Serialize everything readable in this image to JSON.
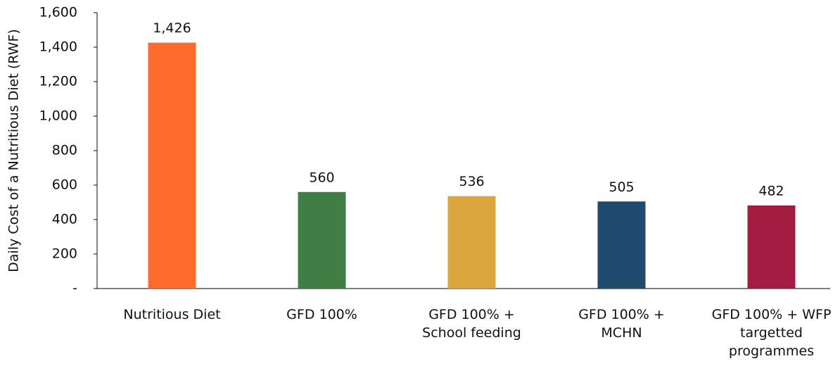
{
  "chart_data": {
    "type": "bar",
    "y_label": "Daily Cost of a Nutritious Diet (RWF)",
    "categories": [
      "Nutritious Diet",
      "GFD 100%",
      "GFD 100% + School feeding",
      "GFD 100% + MCHN",
      "GFD 100% + WFP targetted programmes"
    ],
    "values": [
      1426,
      560,
      536,
      505,
      482
    ],
    "value_labels": [
      "1,426",
      "560",
      "536",
      "505",
      "482"
    ],
    "colors": [
      "#ff6b2b",
      "#3f7f45",
      "#dba63c",
      "#1f4a6e",
      "#a31c40"
    ],
    "ylim": [
      0,
      1600
    ],
    "yticks": [
      {
        "value": 0,
        "label": "-"
      },
      200,
      400,
      600,
      800,
      {
        "value": 1000,
        "label": "1,000"
      },
      {
        "value": 1200,
        "label": "1,200"
      },
      {
        "value": 1400,
        "label": "1,400"
      },
      {
        "value": 1600,
        "label": "1,600"
      }
    ],
    "grid": false
  }
}
